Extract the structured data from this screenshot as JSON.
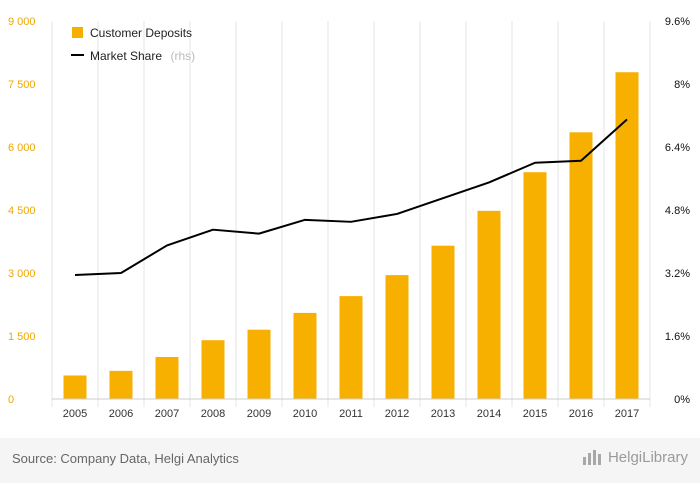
{
  "chart_data": {
    "type": "bar",
    "categories": [
      "2005",
      "2006",
      "2007",
      "2008",
      "2009",
      "2010",
      "2011",
      "2012",
      "2013",
      "2014",
      "2015",
      "2016",
      "2017"
    ],
    "series": [
      {
        "name": "Customer Deposits",
        "kind": "bar",
        "axis": "left",
        "color": "#f7b000",
        "values": [
          560,
          670,
          1000,
          1400,
          1650,
          2050,
          2450,
          2950,
          3650,
          4480,
          5400,
          6350,
          7780
        ]
      },
      {
        "name": "Market Share",
        "suffix": "(rhs)",
        "kind": "line",
        "axis": "right",
        "color": "#000000",
        "values": [
          3.15,
          3.2,
          3.9,
          4.3,
          4.2,
          4.55,
          4.5,
          4.7,
          5.1,
          5.5,
          6.0,
          6.05,
          7.1
        ]
      }
    ],
    "y_left": {
      "ylim": [
        0,
        9000
      ],
      "ticks": [
        0,
        1500,
        3000,
        4500,
        6000,
        7500,
        9000
      ],
      "tick_labels": [
        "0",
        "1 500",
        "3 000",
        "4 500",
        "6 000",
        "7 500",
        "9 000"
      ],
      "color": "#f0a800"
    },
    "y_right": {
      "ylim": [
        0,
        9.6
      ],
      "ticks": [
        0,
        1.6,
        3.2,
        4.8,
        6.4,
        8,
        9.6
      ],
      "tick_labels": [
        "0%",
        "1.6%",
        "3.2%",
        "4.8%",
        "6.4%",
        "8%",
        "9.6%"
      ]
    },
    "grid": "vertical",
    "legend_position": "top-left",
    "title": "",
    "xlabel": "",
    "ylabel": ""
  },
  "footer": {
    "source": "Source: Company Data, Helgi Analytics",
    "brand": "HelgiLibrary"
  }
}
